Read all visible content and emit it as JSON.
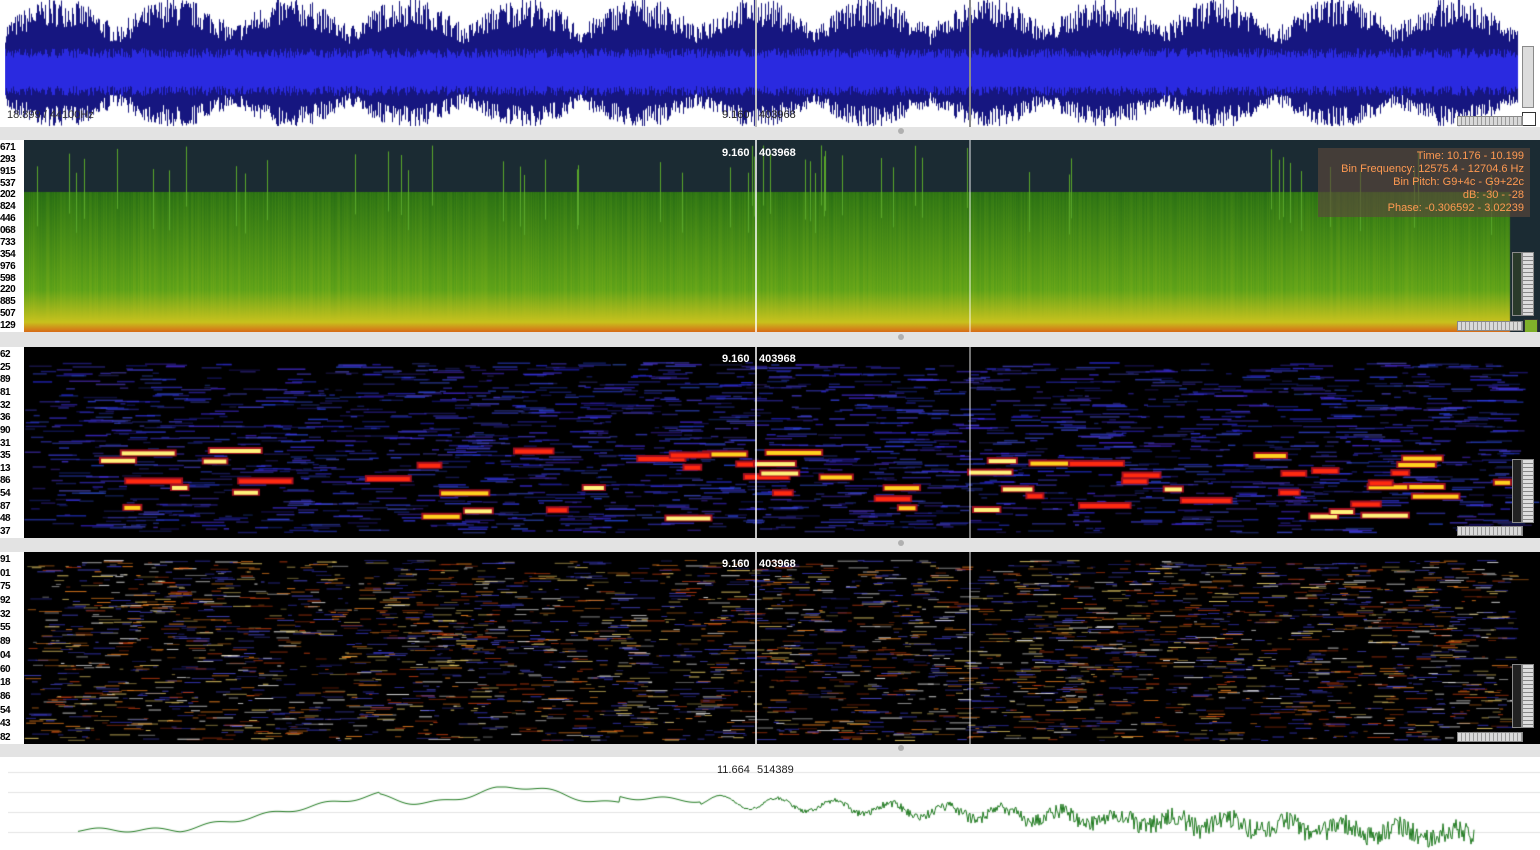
{
  "waveform": {
    "left_label": "18.899 / 44100Hz",
    "cursor_time": "9.160",
    "cursor_frame": "403968",
    "color": "#1a1acc"
  },
  "spectrogram_1": {
    "cursor_time": "9.160",
    "cursor_frame": "403968",
    "ruler_ticks": [
      "671",
      "293",
      "915",
      "537",
      "202",
      "824",
      "446",
      "068",
      "733",
      "354",
      "976",
      "598",
      "220",
      "885",
      "507",
      "129"
    ],
    "info": {
      "time": "Time: 10.176 - 10.199",
      "bin_frequency": "Bin Frequency: 12575.4 - 12704.6 Hz",
      "bin_pitch": "Bin Pitch: G9+4c - G9+22c",
      "db": "dB: -30 - -28",
      "phase": "Phase: -0.306592 - 3.02239"
    },
    "colors": {
      "top": "#1b2b33",
      "body": "#3f8f1e",
      "bottom": "#d8d820"
    }
  },
  "spectrogram_2": {
    "cursor_time": "9.160",
    "cursor_frame": "403968",
    "ruler_ticks": [
      "62",
      "25",
      "89",
      "81",
      "32",
      "36",
      "90",
      "31",
      "35",
      "13",
      "86",
      "54",
      "87",
      "48",
      "37"
    ]
  },
  "spectrogram_3": {
    "cursor_time": "9.160",
    "cursor_frame": "403968",
    "ruler_ticks": [
      "91",
      "01",
      "75",
      "92",
      "32",
      "55",
      "89",
      "04",
      "60",
      "18",
      "86",
      "54",
      "43",
      "82"
    ]
  },
  "fft": {
    "cursor_time": "11.664",
    "cursor_frame": "514389",
    "color": "#1f7a1f"
  }
}
